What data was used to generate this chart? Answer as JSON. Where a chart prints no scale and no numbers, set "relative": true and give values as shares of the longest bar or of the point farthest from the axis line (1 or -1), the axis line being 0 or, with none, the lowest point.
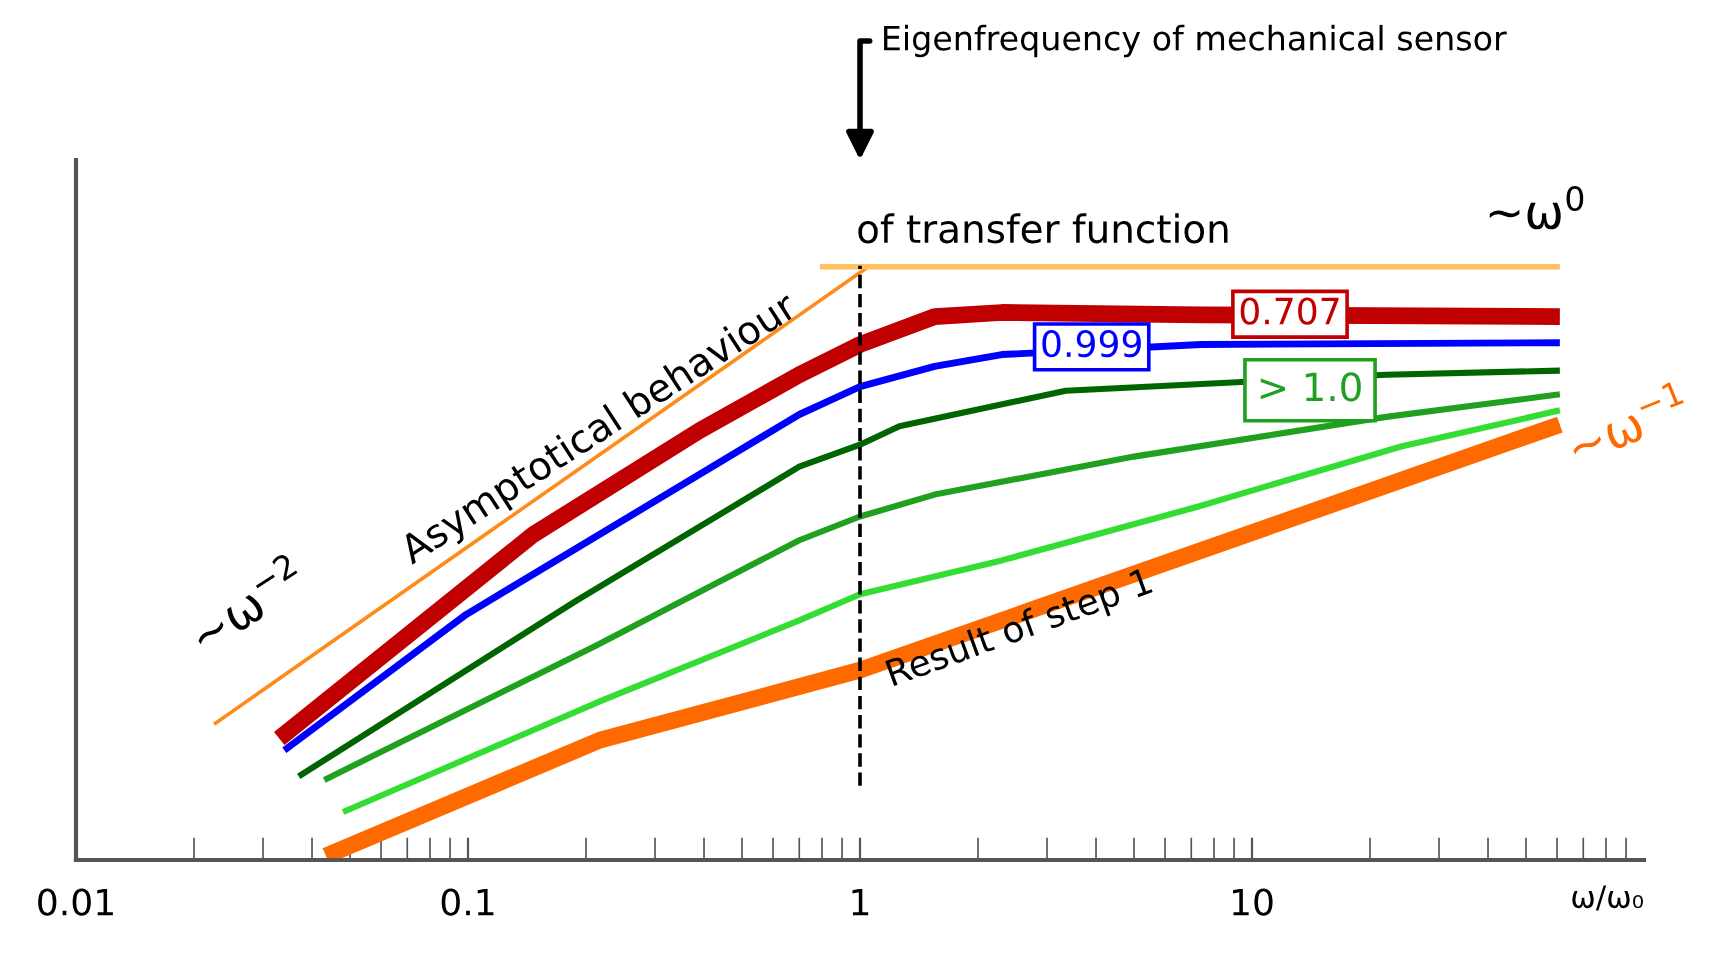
{
  "chart_data": {
    "type": "line",
    "relative": true,
    "log": "x",
    "xlabel": "ω/ω₀",
    "xlim": [
      0.01,
      100
    ],
    "xticks": [
      0.01,
      0.1,
      1,
      10
    ],
    "tick_labels": "x",
    "series": [
      {
        "color": "#ff8c1a",
        "x": [
          0.0225,
          1.05
        ],
        "values": [
          0.229,
          1.0
        ]
      },
      {
        "color": "#ffc060",
        "x": [
          0.79,
          61
        ],
        "values": [
          1.0,
          1.0
        ]
      },
      {
        "color": "#ff6a00",
        "x": [
          0.0434,
          0.217,
          1.0,
          61
        ],
        "values": [
          0.007,
          0.202,
          0.32,
          0.734
        ]
      },
      {
        "color": "#33dd33",
        "x": [
          0.048,
          0.22,
          0.7,
          1.0,
          2.3,
          7.3,
          24,
          61
        ],
        "values": [
          0.081,
          0.269,
          0.404,
          0.448,
          0.505,
          0.596,
          0.697,
          0.758
        ]
      },
      {
        "color": "#1fa01f",
        "x": [
          0.043,
          0.21,
          0.7,
          1.0,
          1.55,
          5.0,
          22,
          61
        ],
        "values": [
          0.135,
          0.36,
          0.539,
          0.579,
          0.616,
          0.68,
          0.747,
          0.785
        ]
      },
      {
        "color": "#006400",
        "x": [
          0.037,
          0.19,
          0.7,
          1.0,
          1.26,
          3.35,
          22,
          61
        ],
        "values": [
          0.141,
          0.438,
          0.663,
          0.7,
          0.731,
          0.791,
          0.818,
          0.825
        ]
      },
      {
        "color": "#0000ff",
        "x": [
          0.034,
          0.099,
          0.7,
          1.0,
          1.55,
          2.3,
          7.4,
          61
        ],
        "values": [
          0.185,
          0.414,
          0.751,
          0.798,
          0.832,
          0.852,
          0.869,
          0.872
        ]
      },
      {
        "color": "#c00000",
        "x": [
          0.033,
          0.147,
          0.39,
          0.7,
          1.0,
          1.55,
          2.3,
          7.4,
          61
        ],
        "values": [
          0.205,
          0.549,
          0.724,
          0.818,
          0.869,
          0.916,
          0.923,
          0.919,
          0.916
        ]
      }
    ],
    "ref_lines": [
      {
        "axis": "x",
        "value": 1,
        "label": "Eigenfrequency of mechanical sensor",
        "line_style": "dashed",
        "color": "#000000"
      }
    ],
    "annotations": [
      "Asymptotical behaviour",
      "of transfer function",
      "~ω$^{−2}$",
      "~ω$^{0}$",
      "~ω$^{−1}$",
      "Result of step 1",
      {
        "text": "0.707",
        "x": 12.5,
        "y": 0.92
      },
      {
        "text": "0.999",
        "x": 3.9,
        "y": 0.865
      },
      "> 1.0"
    ]
  }
}
